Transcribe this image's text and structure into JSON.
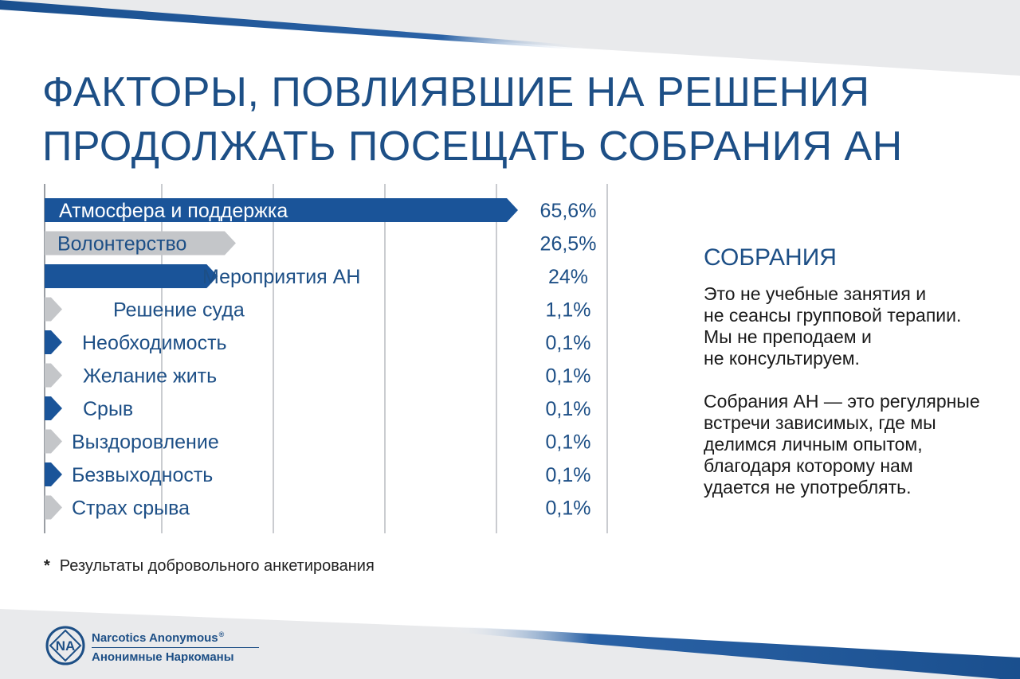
{
  "title": {
    "line1": "ФАКТОРЫ, ПОВЛИЯВШИЕ НА РЕШЕНИЯ",
    "line2": "ПРОДОЛЖАТЬ ПОСЕЩАТЬ СОБРАНИЯ АН"
  },
  "chart_data": {
    "type": "bar",
    "orientation": "horizontal",
    "title": "",
    "xlabel": "",
    "ylabel": "",
    "xlim": [
      0,
      65.6
    ],
    "grid": true,
    "categories": [
      "Атмосфера и поддержка",
      "Волонтерство",
      "Мероприятия АН",
      "Решение суда",
      "Необходимость",
      "Желание жить",
      "Срыв",
      "Выздоровление",
      "Безвыходность",
      "Страх срыва"
    ],
    "values": [
      65.6,
      26.5,
      24,
      1.1,
      0.1,
      0.1,
      0.1,
      0.1,
      0.1,
      0.1
    ],
    "value_labels": [
      "65,6%",
      "26,5%",
      "24%",
      "1,1%",
      "0,1%",
      "0,1%",
      "0,1%",
      "0,1%",
      "0,1%",
      "0,1%"
    ],
    "bar_colors": [
      "#1a5499",
      "#c4c6c9",
      "#1a5499",
      "#c4c6c9",
      "#1a5499",
      "#c4c6c9",
      "#1a5499",
      "#c4c6c9",
      "#1a5499",
      "#c4c6c9"
    ]
  },
  "footnote": {
    "star": "*",
    "text": "Результаты добровольного анкетирования"
  },
  "sidebar": {
    "heading": "СОБРАНИЯ",
    "para1": "Это не учебные занятия и\nне сеансы групповой терапии.\nМы не преподаем и\nне консультируем.",
    "para2": "Собрания АН — это регулярные\nвстречи зависимых, где мы\nделимся личным опытом,\nблагодаря которому нам\nудается не употреблять."
  },
  "logo": {
    "mark": "NA",
    "line1": "Narcotics Anonymous",
    "reg": "®",
    "line2": "Анонимные Наркоманы"
  },
  "colors": {
    "accent": "#1a5499",
    "grey": "#c4c6c9",
    "title": "#1d4f86"
  }
}
